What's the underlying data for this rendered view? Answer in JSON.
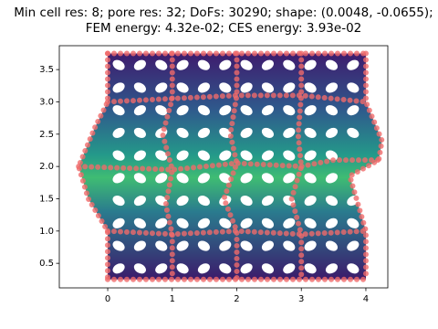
{
  "chart_data": {
    "type": "mesh",
    "title": [
      "Min cell res: 8; pore res: 32; DoFs: 30290; shape: (0.0048, -0.0655);",
      "FEM energy: 4.32e-02; CES energy: 3.93e-02"
    ],
    "xlim": [
      -0.75,
      4.34
    ],
    "ylim": [
      0.12,
      3.87
    ],
    "xticks": [
      0,
      1,
      2,
      3,
      4
    ],
    "yticks": [
      0.5,
      1.0,
      1.5,
      2.0,
      2.5,
      3.0,
      3.5
    ],
    "ytick_labels": [
      "0.5",
      "1.0",
      "1.5",
      "2.0",
      "2.5",
      "3.0",
      "3.5"
    ]
  }
}
